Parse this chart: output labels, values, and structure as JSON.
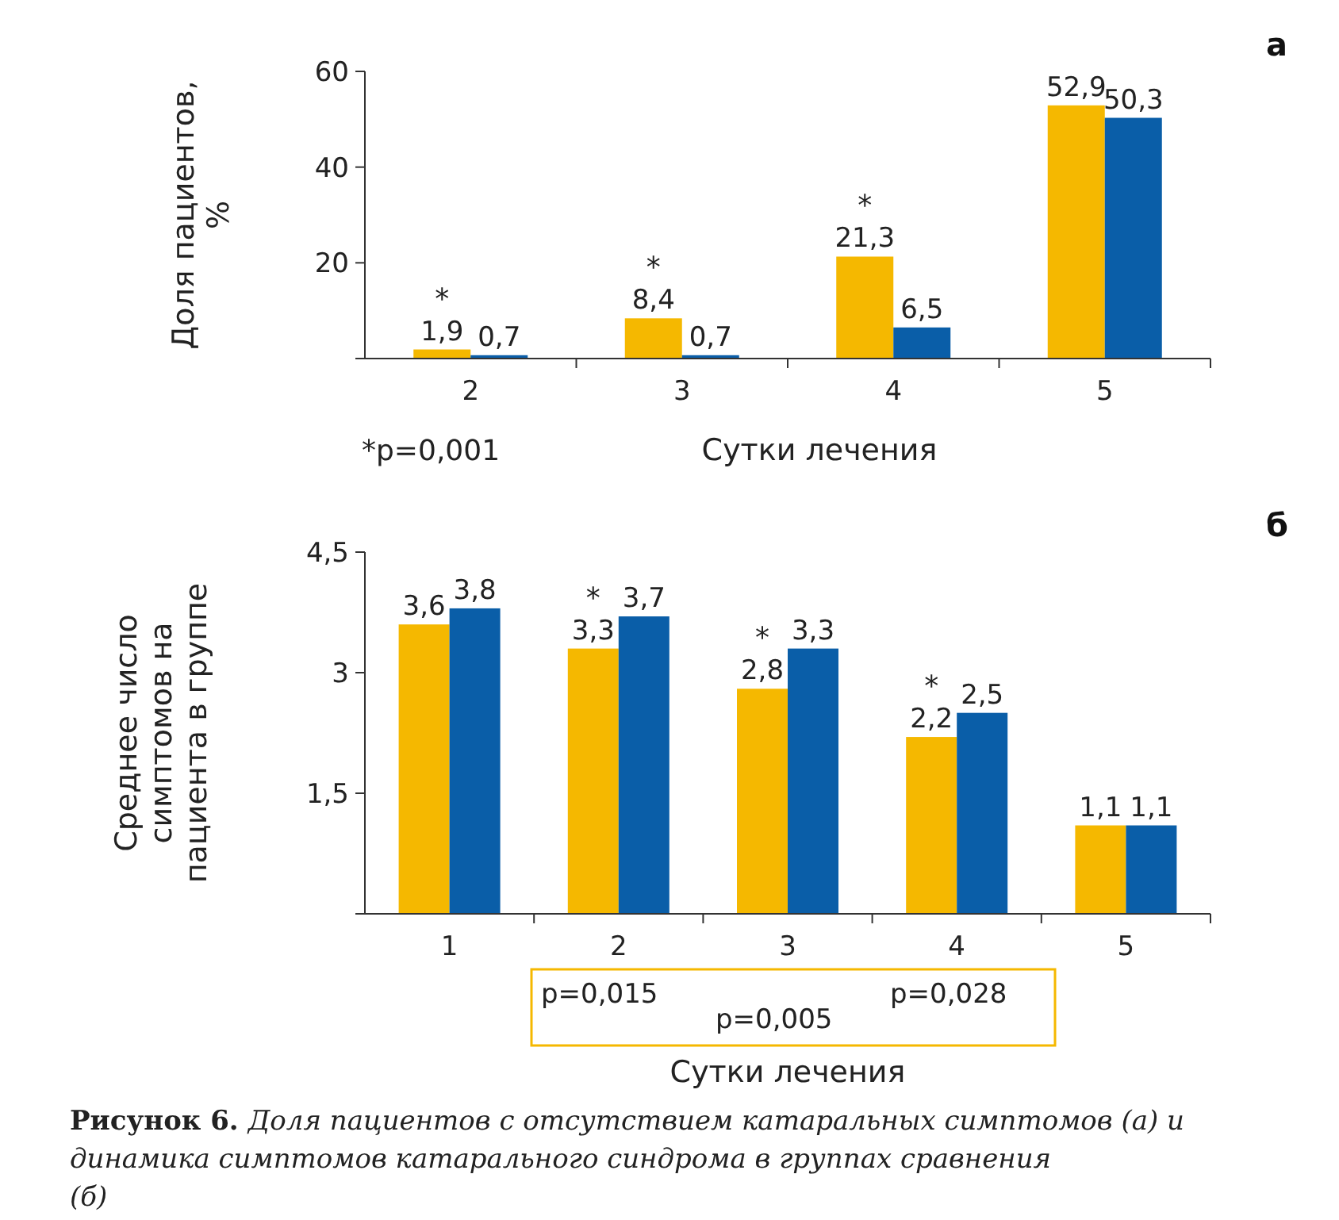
{
  "chart_data": [
    {
      "type": "bar",
      "ylabel": "Доля пациентов, %",
      "xlabel": "Сутки лечения",
      "categories": [
        "2",
        "3",
        "4",
        "5"
      ],
      "ylim": [
        0,
        60
      ],
      "yticks": [
        {
          "value": 0,
          "label": null
        },
        20,
        40,
        60
      ],
      "series": [
        {
          "color": "#f5b800",
          "values": [
            1.9,
            8.4,
            21.3,
            52.9
          ],
          "value_labels": [
            "1,9",
            "8,4",
            "21,3",
            "52,9"
          ]
        },
        {
          "color": "#0a5ea8",
          "values": [
            0.7,
            0.7,
            6.5,
            50.3
          ],
          "value_labels": [
            "0,7",
            "0,7",
            "6,5",
            "50,3"
          ]
        }
      ],
      "annotations": [
        "а",
        {
          "text": "*",
          "x": "2",
          "y": 1.9
        },
        {
          "text": "*",
          "x": "3",
          "y": 8.4
        },
        {
          "text": "*",
          "x": "4",
          "y": 21.3
        },
        "*p=0,001"
      ]
    },
    {
      "type": "bar",
      "ylabel": "Среднее число симптомов на пациента в группе",
      "xlabel": "Сутки лечения",
      "categories": [
        "1",
        "2",
        "3",
        "4",
        "5"
      ],
      "ylim": [
        0,
        4.5
      ],
      "yticks": [
        {
          "value": 0,
          "label": null
        },
        {
          "value": 1.5,
          "label": "1,5"
        },
        3,
        {
          "value": 4.5,
          "label": "4,5"
        }
      ],
      "series": [
        {
          "color": "#f5b800",
          "values": [
            3.6,
            3.3,
            2.8,
            2.2,
            1.1
          ],
          "value_labels": [
            "3,6",
            "3,3",
            "2,8",
            "2,2",
            "1,1"
          ]
        },
        {
          "color": "#0a5ea8",
          "values": [
            3.8,
            3.7,
            3.3,
            2.5,
            1.1
          ],
          "value_labels": [
            "3,8",
            "3,7",
            "3,3",
            "2,5",
            "1,1"
          ]
        }
      ],
      "annotations": [
        "б",
        {
          "text": "*",
          "x": "2",
          "y": 3.3
        },
        {
          "text": "*",
          "x": "3",
          "y": 2.8
        },
        {
          "text": "*",
          "x": "4",
          "y": 2.2
        },
        "p=0,015",
        "p=0,005",
        "p=0,028",
        "Рисунок 6.",
        "Доля пациентов с отсутствием катаральных симптомов (а) и динамика симптомов катарального синдрома в группах сравнения (б)"
      ]
    }
  ]
}
